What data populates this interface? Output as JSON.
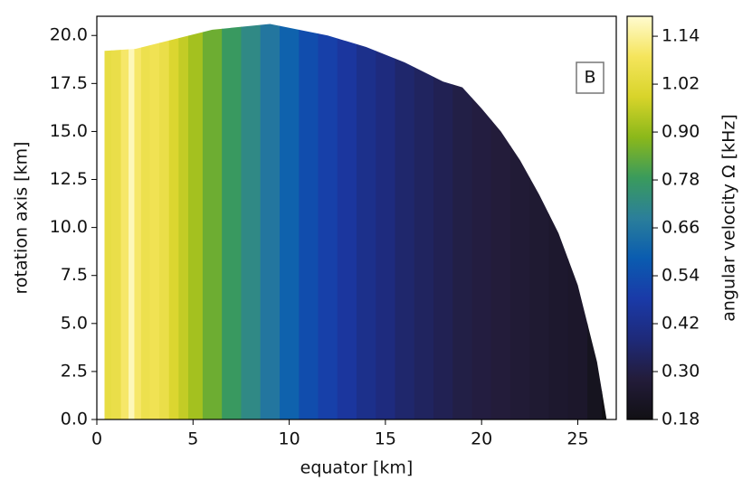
{
  "chart_data": {
    "type": "contour",
    "xlabel": "equator [km]",
    "ylabel": "rotation axis [km]",
    "colorbar_label": "angular velocity Ω [kHz]",
    "annotation": "B",
    "x": [
      0.5,
      1.0,
      1.5,
      1.8,
      2.1,
      2.5,
      3,
      3.5,
      4,
      4.5,
      5,
      6,
      7,
      8,
      9,
      10,
      11,
      12,
      13,
      14,
      15,
      16,
      17,
      18,
      19,
      20,
      21,
      22,
      23,
      24,
      25,
      26,
      26.5
    ],
    "values": [
      1.04,
      1.05,
      1.1,
      1.17,
      1.1,
      1.06,
      1.07,
      1.05,
      1.0,
      0.96,
      0.92,
      0.85,
      0.78,
      0.72,
      0.66,
      0.6,
      0.54,
      0.5,
      0.46,
      0.42,
      0.39,
      0.36,
      0.34,
      0.32,
      0.3,
      0.29,
      0.28,
      0.27,
      0.26,
      0.25,
      0.24,
      0.21,
      0.18
    ],
    "boundary": {
      "x": [
        0.4,
        0.4,
        2,
        4,
        6,
        8,
        9,
        10,
        12,
        14,
        16,
        18,
        19,
        20,
        21,
        22,
        23,
        24,
        25,
        25.5,
        26,
        26.5
      ],
      "y": [
        0,
        19.2,
        19.3,
        19.8,
        20.3,
        20.5,
        20.6,
        20.4,
        20.0,
        19.4,
        18.6,
        17.6,
        17.3,
        16.2,
        15.0,
        13.5,
        11.7,
        9.7,
        7.0,
        5.0,
        3.0,
        0
      ]
    },
    "xlim": [
      0,
      27
    ],
    "ylim": [
      0,
      21
    ],
    "xticks": [
      0,
      5,
      10,
      15,
      20,
      25
    ],
    "yticks": [
      {
        "value": 0,
        "label": "0.0"
      },
      {
        "value": 2.5,
        "label": "2.5"
      },
      {
        "value": 5,
        "label": "5.0"
      },
      {
        "value": 7.5,
        "label": "7.5"
      },
      {
        "value": 10,
        "label": "10.0"
      },
      {
        "value": 12.5,
        "label": "12.5"
      },
      {
        "value": 15,
        "label": "15.0"
      },
      {
        "value": 17.5,
        "label": "17.5"
      },
      {
        "value": 20,
        "label": "20.0"
      }
    ],
    "clim": [
      0.18,
      1.19
    ],
    "cticks": [
      0.18,
      {
        "value": 0.3,
        "label": "0.30"
      },
      0.42,
      0.54,
      0.66,
      0.78,
      {
        "value": 0.9,
        "label": "0.90"
      },
      1.02,
      1.14
    ],
    "colormap": [
      "#111014",
      "#231c3a",
      "#1e2a7a",
      "#1a3aa8",
      "#0a5cb0",
      "#2b7f9a",
      "#3a9b5c",
      "#8bb81a",
      "#d8d42a",
      "#f5e55c",
      "#fffbd0"
    ]
  }
}
